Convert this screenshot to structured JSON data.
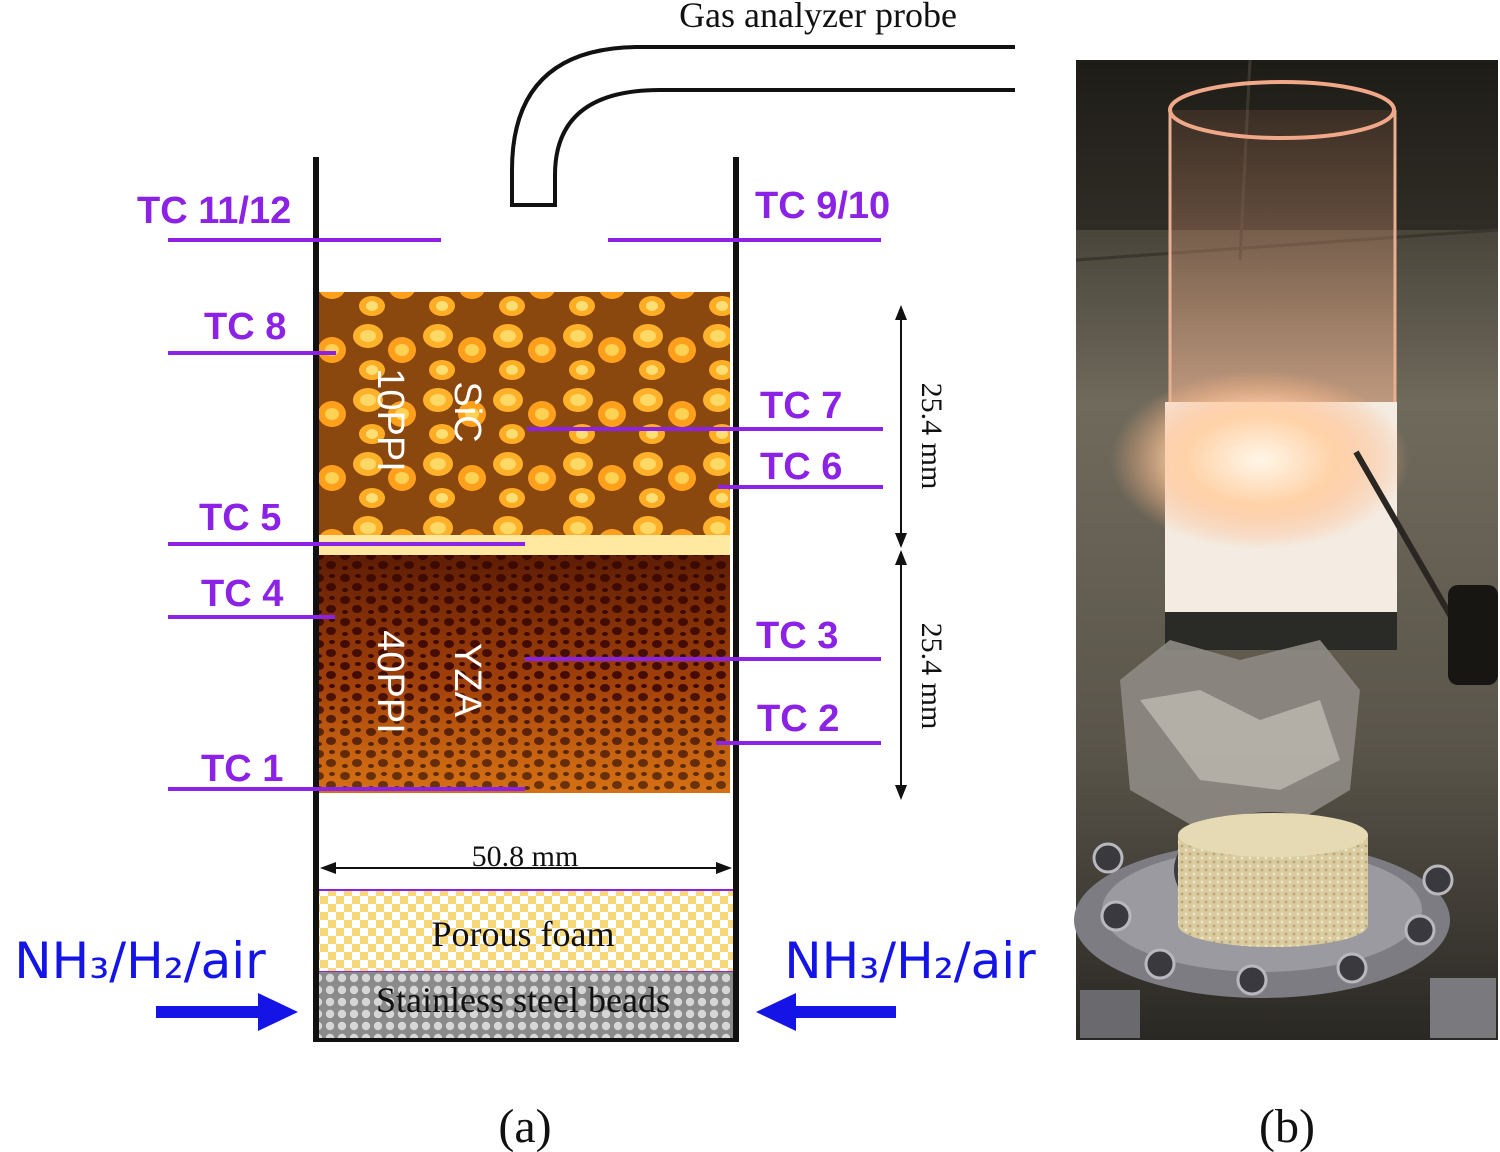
{
  "colors": {
    "thermocouple": "#8b22e6",
    "flow_arrow": "#1414e6",
    "wall": "#111111",
    "foam_check_a": "#f7d878",
    "foam_check_b": "#ffffff",
    "beads": "#9a9a9a"
  },
  "probe": {
    "label": "Gas analyzer probe"
  },
  "thermocouples": {
    "tc11_12": "TC 11/12",
    "tc9_10": "TC 9/10",
    "tc8": "TC 8",
    "tc7": "TC 7",
    "tc6": "TC 6",
    "tc5": "TC 5",
    "tc4": "TC 4",
    "tc3": "TC 3",
    "tc2": "TC 2",
    "tc1": "TC 1"
  },
  "foam_upper": {
    "line1": "SiC",
    "line2": "10PPI"
  },
  "foam_lower": {
    "line1": "YZA",
    "line2": "40PPI"
  },
  "dimensions": {
    "upper": "25.4 mm",
    "lower": "25.4 mm",
    "width": "50.8 mm"
  },
  "bottom": {
    "porous_foam": "Porous foam",
    "beads": "Stainless steel beads"
  },
  "inflow": {
    "left": "NH₃/H₂/air",
    "right": "NH₃/H₂/air"
  },
  "captions": {
    "a": "(a)",
    "b": "(b)"
  },
  "photo": {
    "icon": "burner-photo"
  }
}
